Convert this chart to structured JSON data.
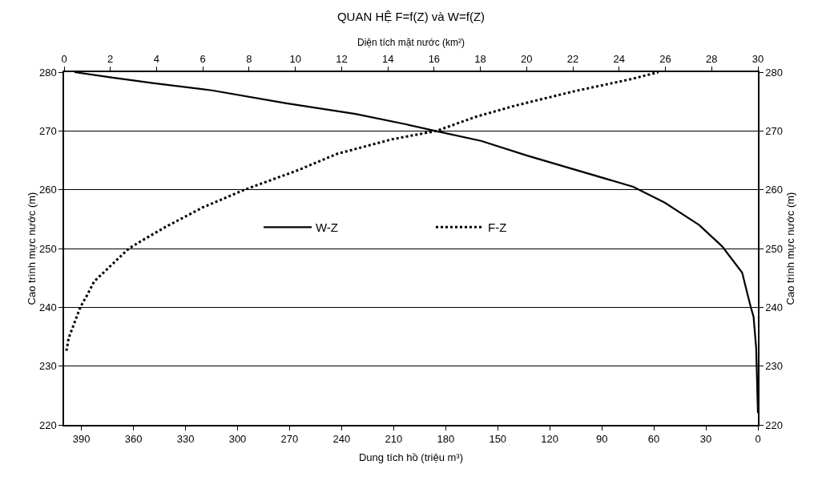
{
  "chart_data": {
    "type": "line",
    "title": "QUAN HỆ F=f(Z) và W=f(Z)",
    "xlabel": "Dung tích hồ (triệu m³)",
    "x2label": "Diện tích mặt nước (km²)",
    "ylabel": "Cao trình mực nước (m)",
    "y2label": "Cao trình mực nước (m)",
    "xlim": [
      400,
      0
    ],
    "xticks": [
      390,
      360,
      330,
      300,
      270,
      240,
      210,
      180,
      150,
      120,
      90,
      60,
      30,
      0
    ],
    "x2lim": [
      0,
      30
    ],
    "x2ticks": [
      0,
      2,
      4,
      6,
      8,
      10,
      12,
      14,
      16,
      18,
      20,
      22,
      24,
      26,
      28,
      30
    ],
    "ylim": [
      220,
      280
    ],
    "yticks": [
      220,
      230,
      240,
      250,
      260,
      270,
      280
    ],
    "y2lim": [
      220,
      280
    ],
    "y2ticks": [
      220,
      230,
      240,
      250,
      260,
      270,
      280
    ],
    "grid": "y",
    "legend": "center",
    "marker": "none",
    "series": [
      {
        "name": "W-Z",
        "color": "#000000",
        "line_style": "solid",
        "x": [
          0,
          1,
          2.5,
          4.1,
          9.1,
          20.7,
          33.9,
          53.7,
          71.9,
          133,
          159.6,
          185.9,
          202.4,
          232,
          271.8,
          314.7,
          348,
          372.7,
          394
        ],
        "values": [
          222,
          233,
          238.4,
          240,
          245.9,
          250.4,
          254,
          257.8,
          260.5,
          265.8,
          268.3,
          270,
          271.1,
          272.9,
          274.7,
          276.9,
          278.1,
          279.1,
          280
        ]
      },
      {
        "name": "F-Z",
        "color": "#000000",
        "line_style": "dotted",
        "axis": "x2",
        "x": [
          0.1,
          0.2,
          0.7,
          1.0,
          1.3,
          2.8,
          3.3,
          4.4,
          6.0,
          7.8,
          10.1,
          11.8,
          14.2,
          16.1,
          17.8,
          19.5,
          22.0,
          24.5,
          25.7
        ],
        "values": [
          232.6,
          234.8,
          240,
          242.1,
          244.4,
          250,
          251.2,
          253.7,
          257,
          260,
          263.3,
          266.1,
          268.6,
          270,
          272.4,
          274.3,
          276.7,
          278.8,
          280
        ]
      }
    ]
  }
}
